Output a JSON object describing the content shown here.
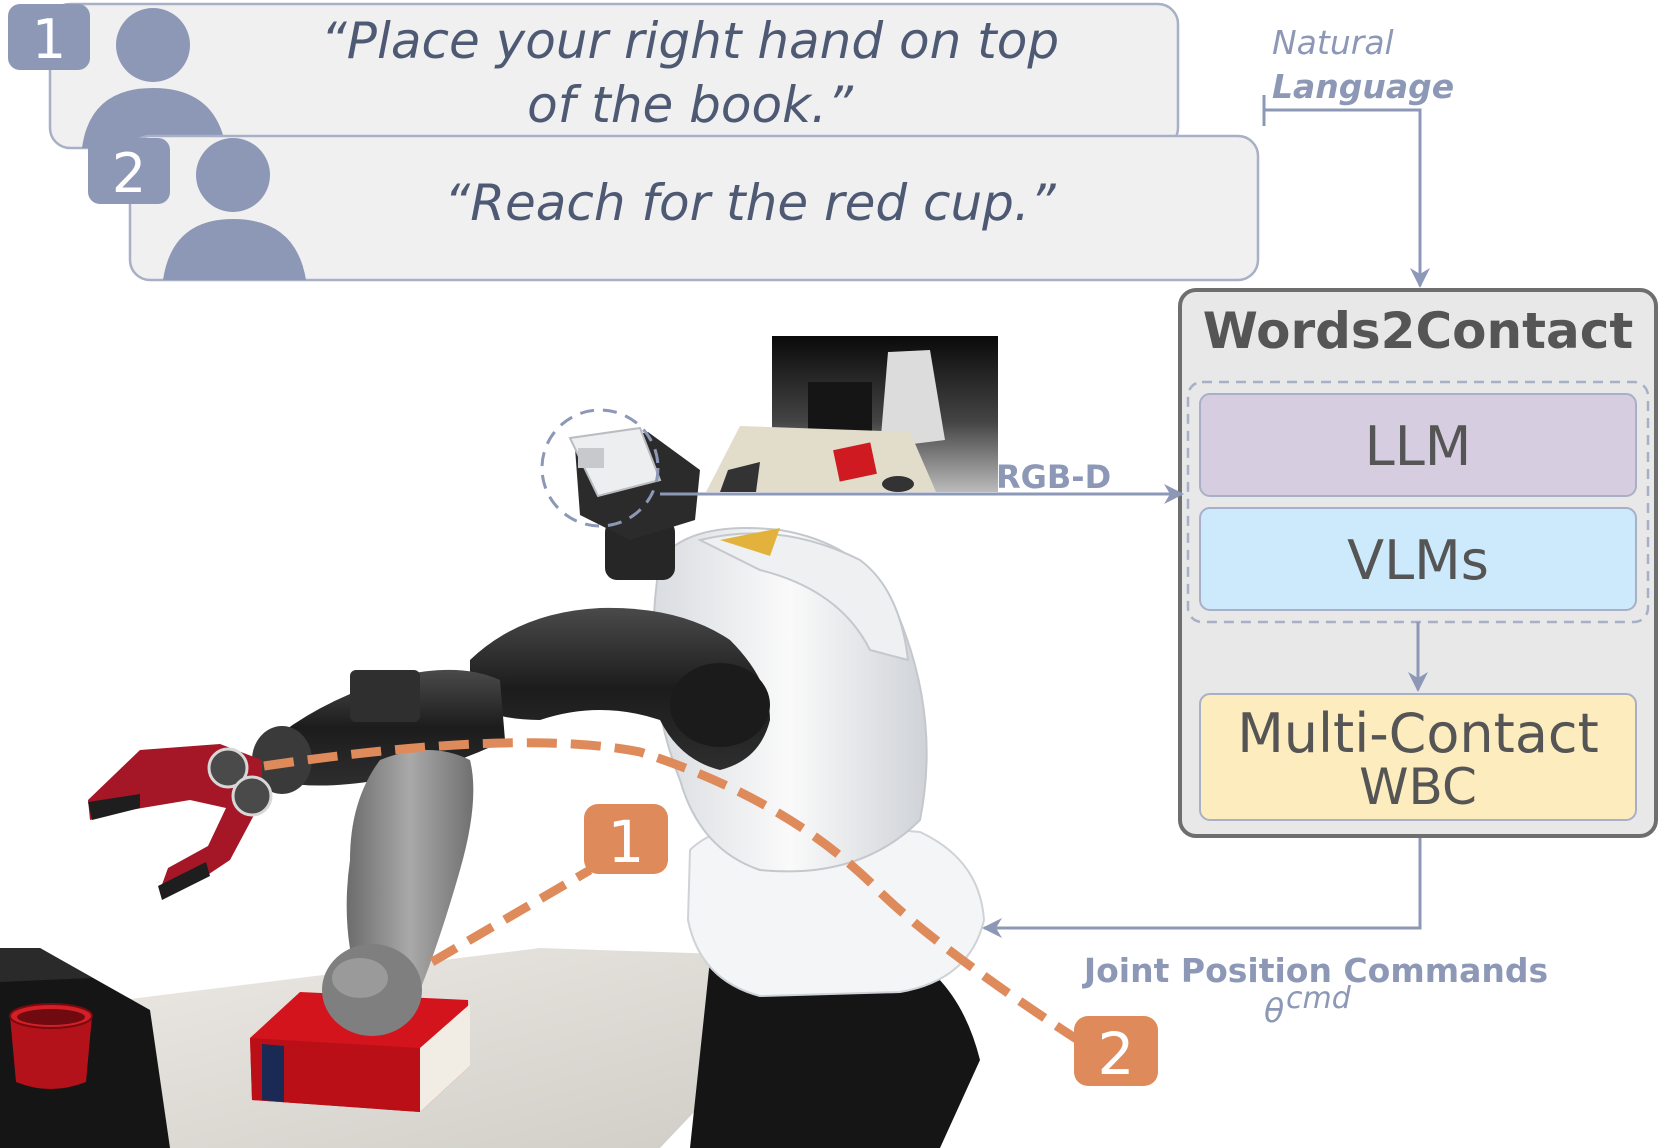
{
  "speakers": [
    {
      "number": "1",
      "quote_line1": "“Place your right hand on top",
      "quote_line2": "of the book.”"
    },
    {
      "number": "2",
      "quote_line1": "“Reach for the red cup.”"
    }
  ],
  "input_label": {
    "line1": "Natural",
    "line2": "Language"
  },
  "rgbd_label": "RGB-D",
  "system": {
    "title": "Words2Contact",
    "llm": "LLM",
    "vlms": "VLMs",
    "wbc_line1": "Multi-Contact",
    "wbc_line2": "WBC"
  },
  "output_label": {
    "line1": "Joint Position Commands",
    "symbol": "θ",
    "superscript": "cmd"
  },
  "targets": [
    {
      "number": "1"
    },
    {
      "number": "2"
    }
  ],
  "colors": {
    "bubble_fill": "#f0f0f0",
    "bubble_stroke": "#a8b0c8",
    "accent": "#8d98b7",
    "system_fill": "#e8e8e8",
    "system_stroke": "#6e6e6e",
    "llm_fill": "#d7cde0",
    "vlm_fill": "#cceafb",
    "wbc_fill": "#fdecbe",
    "trajectory": "#de8a5a"
  }
}
